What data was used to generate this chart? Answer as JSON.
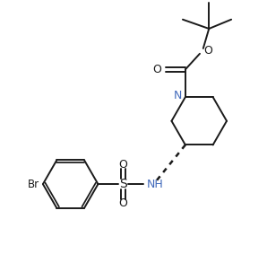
{
  "bg_color": "#ffffff",
  "line_color": "#1a1a1a",
  "atom_colors": {
    "Br": "#1a1a1a",
    "O": "#1a1a1a",
    "N": "#4169bb",
    "S": "#1a1a1a",
    "C": "#1a1a1a"
  },
  "figsize": [
    2.98,
    2.93
  ],
  "dpi": 100,
  "xlim": [
    0,
    10
  ],
  "ylim": [
    0,
    10
  ]
}
